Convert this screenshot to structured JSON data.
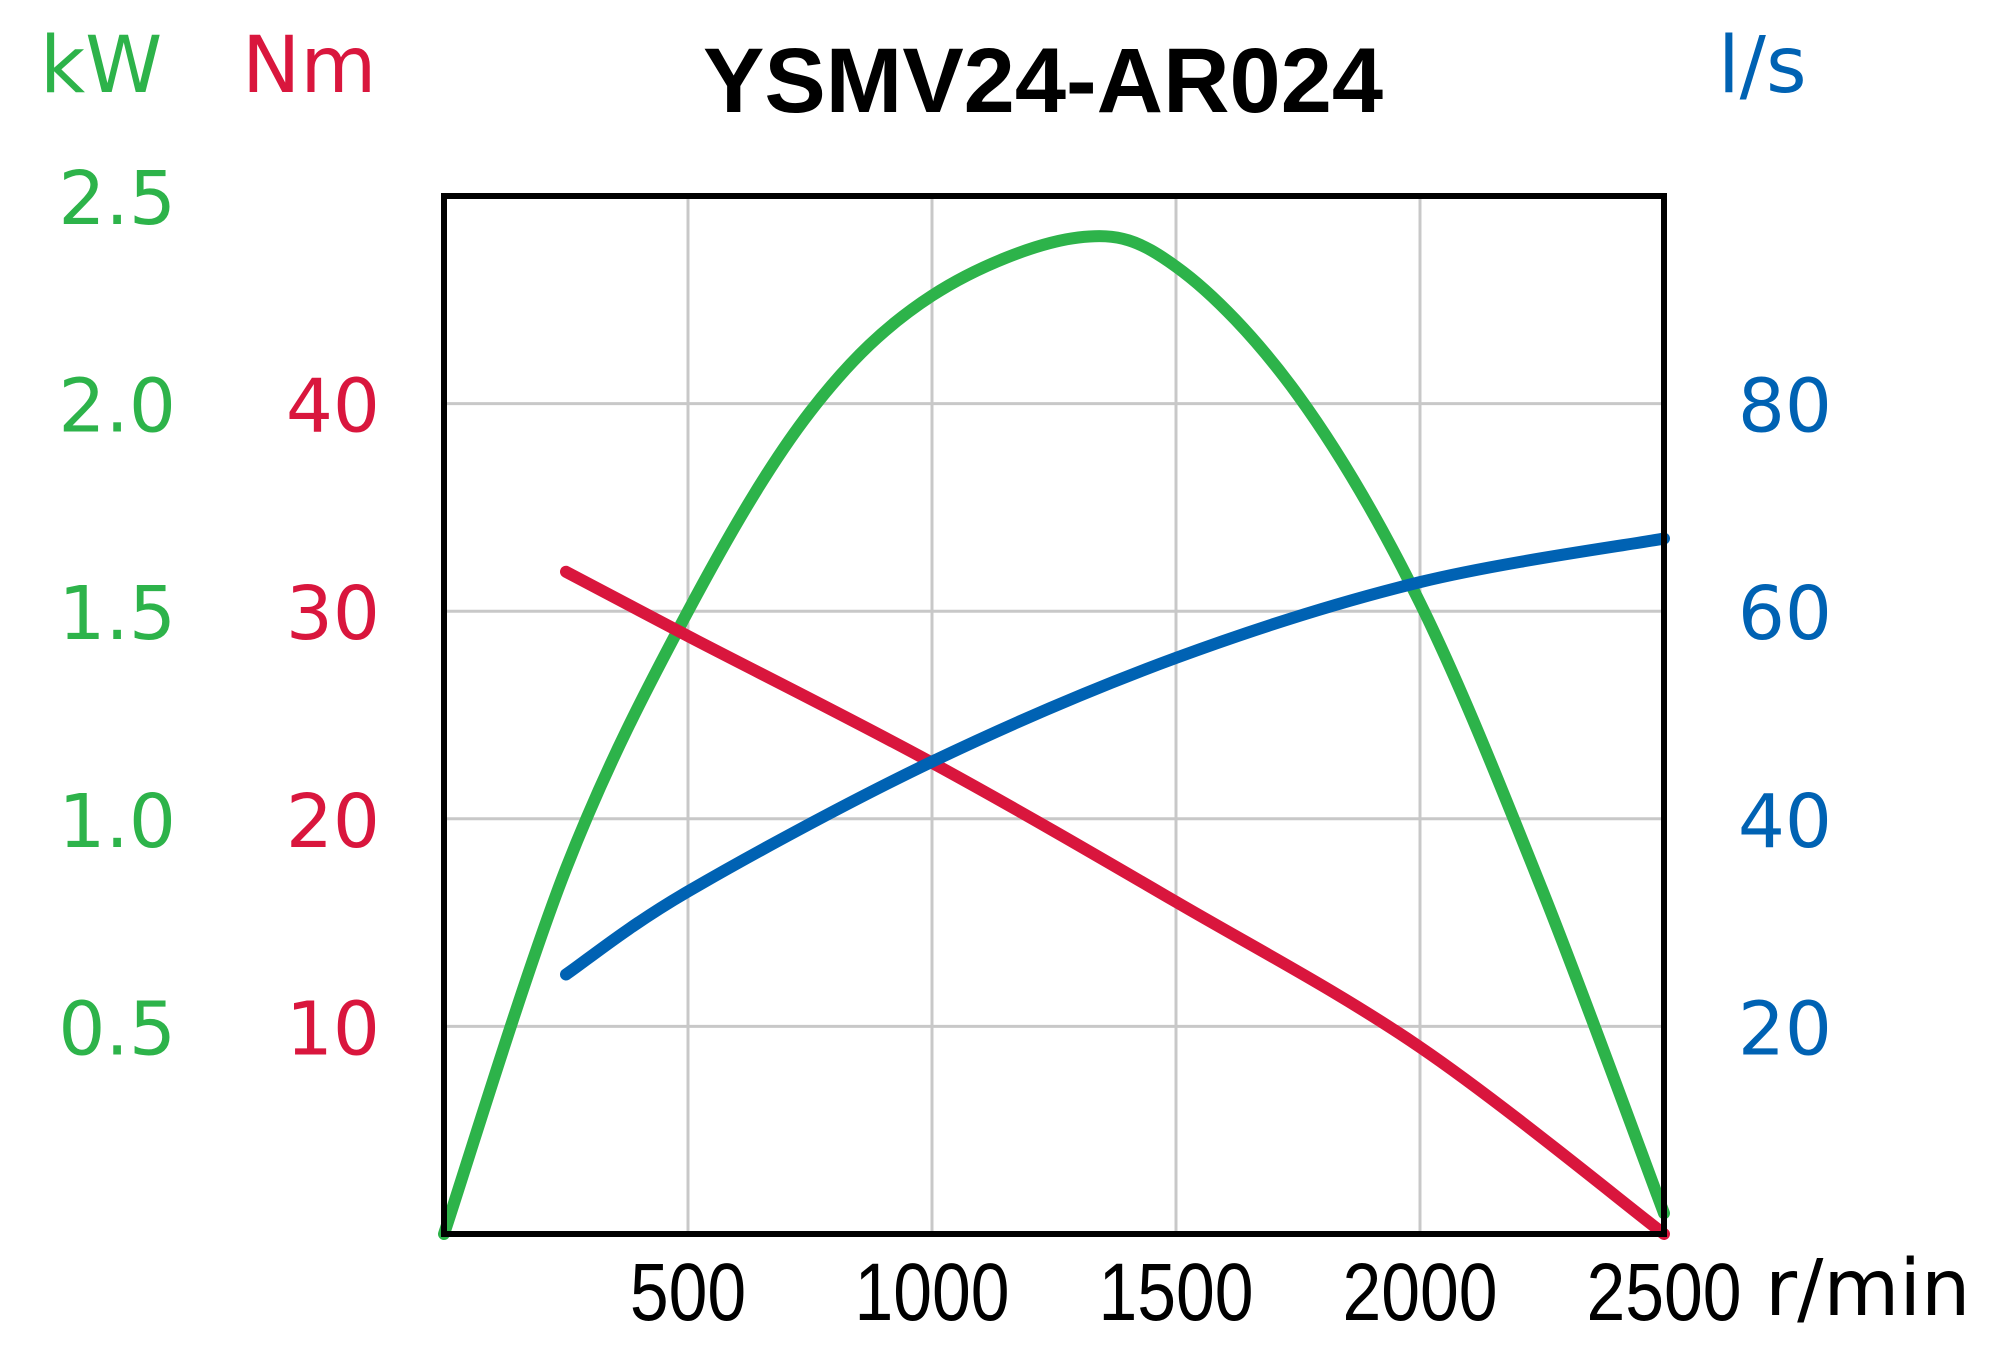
{
  "chart_data": {
    "type": "line",
    "title": "YSMV24-AR024",
    "colors": {
      "power": "#2db34a",
      "torque": "#d9163d",
      "flow": "#0062b3",
      "grid": "#c8c8c8",
      "frame": "#000000"
    },
    "x": {
      "unit": "r/min",
      "range": [
        0,
        2500
      ],
      "ticks": [
        500,
        1000,
        1500,
        2000,
        2500
      ]
    },
    "axes": {
      "power": {
        "unit": "kW",
        "side": "left-outer",
        "range": [
          0,
          2.5
        ],
        "ticks": [
          "0.5",
          "1.0",
          "1.5",
          "2.0",
          "2.5"
        ],
        "tick_values": [
          0.5,
          1.0,
          1.5,
          2.0,
          2.5
        ]
      },
      "torque": {
        "unit": "Nm",
        "side": "left-inner",
        "range": [
          0,
          50
        ],
        "ticks": [
          "10",
          "20",
          "30",
          "40"
        ],
        "tick_values": [
          10,
          20,
          30,
          40
        ]
      },
      "flow": {
        "unit": "l/s",
        "side": "right",
        "range": [
          0,
          100
        ],
        "ticks": [
          "20",
          "40",
          "60",
          "80"
        ],
        "tick_values": [
          20,
          40,
          60,
          80
        ]
      }
    },
    "grid": true,
    "series": [
      {
        "key": "power",
        "axis": "power",
        "x": [
          0,
          250,
          500,
          750,
          1000,
          1300,
          1500,
          1750,
          2000,
          2250,
          2500
        ],
        "values": [
          0,
          0.88,
          1.5,
          1.98,
          2.26,
          2.4,
          2.33,
          2.02,
          1.52,
          0.83,
          0.05
        ]
      },
      {
        "key": "torque",
        "axis": "torque",
        "x": [
          250,
          500,
          1000,
          1500,
          2000,
          2500
        ],
        "values": [
          31.9,
          28.8,
          22.7,
          16.0,
          9.0,
          0
        ]
      },
      {
        "key": "flow",
        "axis": "flow",
        "x": [
          250,
          500,
          1000,
          1500,
          2000,
          2500
        ],
        "values": [
          25,
          33,
          45.5,
          55.5,
          62.8,
          67
        ]
      }
    ]
  }
}
